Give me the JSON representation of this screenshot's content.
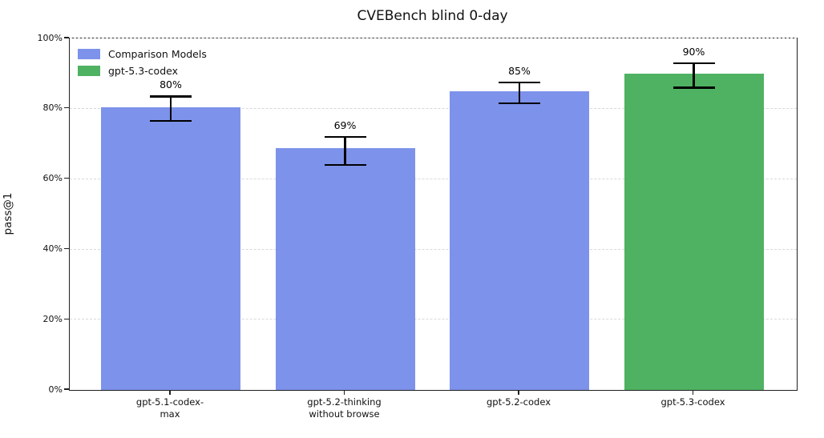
{
  "chart_data": {
    "type": "bar",
    "title": "CVEBench blind 0-day",
    "xlabel": "",
    "ylabel": "pass@1",
    "ylim": [
      0,
      100
    ],
    "grid": "horizontal dashed",
    "yticks": [
      0,
      20,
      40,
      60,
      80,
      100
    ],
    "ytick_labels": [
      "0%",
      "20%",
      "40%",
      "60%",
      "80%",
      "100%"
    ],
    "legend": {
      "position": "upper left",
      "entries": [
        {
          "label": "Comparison Models",
          "color": "#7d92ea"
        },
        {
          "label": "gpt-5.3-codex",
          "color": "#4fb263"
        }
      ]
    },
    "categories": [
      "gpt-5.1-codex-max",
      "gpt-5.2-thinking without browse",
      "gpt-5.2-codex",
      "gpt-5.3-codex"
    ],
    "bars": [
      {
        "category": "gpt-5.1-codex-max",
        "tick_lines": [
          "gpt-5.1-codex-",
          "max"
        ],
        "value": 80.4,
        "value_label": "80%",
        "error_low": 76.5,
        "error_high": 83.5,
        "color": "#7d92ea",
        "series": "Comparison Models"
      },
      {
        "category": "gpt-5.2-thinking without browse",
        "tick_lines": [
          "gpt-5.2-thinking",
          "without browse"
        ],
        "value": 68.7,
        "value_label": "69%",
        "error_low": 64.0,
        "error_high": 72.0,
        "color": "#7d92ea",
        "series": "Comparison Models"
      },
      {
        "category": "gpt-5.2-codex",
        "tick_lines": [
          "gpt-5.2-codex"
        ],
        "value": 85.0,
        "value_label": "85%",
        "error_low": 81.5,
        "error_high": 87.5,
        "color": "#7d92ea",
        "series": "Comparison Models"
      },
      {
        "category": "gpt-5.3-codex",
        "tick_lines": [
          "gpt-5.3-codex"
        ],
        "value": 90.0,
        "value_label": "90%",
        "error_low": 86.0,
        "error_high": 93.0,
        "color": "#4fb263",
        "series": "gpt-5.3-codex"
      }
    ]
  }
}
